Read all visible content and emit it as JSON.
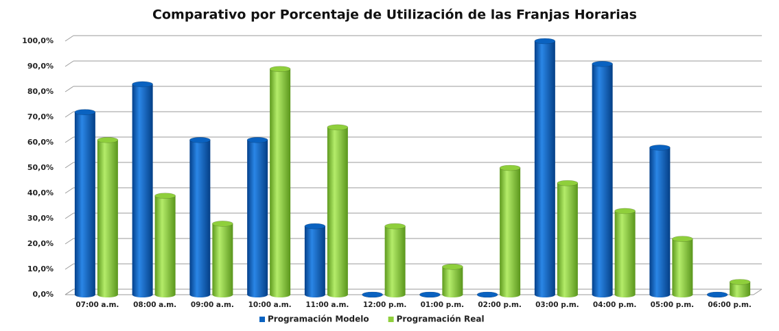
{
  "chart_data": {
    "type": "bar",
    "title": "Comparativo por Porcentaje de Utilización de las Franjas Horarias",
    "categories": [
      "07:00 a.m.",
      "08:00 a.m.",
      "09:00 a.m.",
      "10:00 a.m.",
      "11:00 a.m.",
      "12:00 p.m.",
      "01:00 p.m.",
      "02:00 p.m.",
      "03:00 p.m.",
      "04:00 p.m.",
      "05:00 p.m.",
      "06:00 p.m."
    ],
    "series": [
      {
        "name": "Programación Modelo",
        "color": "#0a62c0",
        "values": [
          72,
          83,
          61,
          61,
          27,
          0,
          0,
          0,
          100,
          91,
          58,
          0
        ]
      },
      {
        "name": "Programación Real",
        "color": "#8fcf3c",
        "values": [
          61,
          39,
          28,
          89,
          66,
          27,
          11,
          50,
          44,
          33,
          22,
          5
        ]
      }
    ],
    "ylim": [
      0,
      100
    ],
    "yticks": [
      {
        "value": 0,
        "label": "0,0%"
      },
      {
        "value": 10,
        "label": "10,0%"
      },
      {
        "value": 20,
        "label": "20,0%"
      },
      {
        "value": 30,
        "label": "30,0%"
      },
      {
        "value": 40,
        "label": "40,0%"
      },
      {
        "value": 50,
        "label": "50,0%"
      },
      {
        "value": 60,
        "label": "60,0%"
      },
      {
        "value": 70,
        "label": "70,0%"
      },
      {
        "value": 80,
        "label": "80,0%"
      },
      {
        "value": 90,
        "label": "90,0%"
      },
      {
        "value": 100,
        "label": "100,0%"
      }
    ],
    "grid": true,
    "legend": "bottom"
  }
}
